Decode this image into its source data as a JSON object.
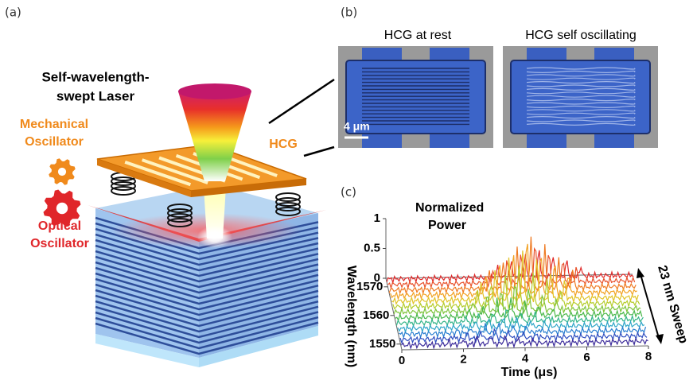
{
  "panels": {
    "a": {
      "label": "(a)",
      "title": [
        "Self-wavelength-",
        "swept Laser"
      ],
      "mechanical": [
        "Mechanical",
        "Oscillator"
      ],
      "optical": [
        "Optical",
        "Oscillator"
      ],
      "hcg": "HCG"
    },
    "b": {
      "label": "(b)",
      "images": [
        {
          "caption": "HCG at rest",
          "scale_bar": "4 μm"
        },
        {
          "caption": "HCG self oscillating"
        }
      ]
    },
    "c": {
      "label": "(c)",
      "z_label": [
        "Normalized",
        "Power"
      ],
      "zlim": [
        0,
        1
      ],
      "zticks": [
        0,
        0.5,
        1
      ],
      "y_label": "Wavelength (nm)",
      "ylim": [
        1548,
        1573
      ],
      "yticks": [
        1550,
        1560,
        1570
      ],
      "x_label": "Time (μs)",
      "xlim": [
        0,
        8
      ],
      "xticks": [
        0,
        2,
        4,
        6,
        8
      ],
      "sweep_label": "23 nm Sweep"
    }
  }
}
